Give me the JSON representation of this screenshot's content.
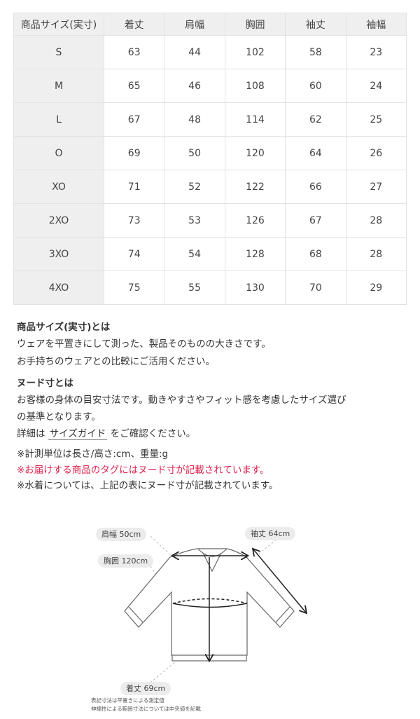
{
  "table": {
    "headers": [
      "商品サイズ(実寸)",
      "着丈",
      "肩幅",
      "胸囲",
      "袖丈",
      "袖幅"
    ],
    "rows": [
      [
        "S",
        "63",
        "44",
        "102",
        "58",
        "23"
      ],
      [
        "M",
        "65",
        "46",
        "108",
        "60",
        "24"
      ],
      [
        "L",
        "67",
        "48",
        "114",
        "62",
        "25"
      ],
      [
        "O",
        "69",
        "50",
        "120",
        "64",
        "26"
      ],
      [
        "XO",
        "71",
        "52",
        "122",
        "66",
        "27"
      ],
      [
        "2XO",
        "73",
        "53",
        "126",
        "67",
        "28"
      ],
      [
        "3XO",
        "74",
        "54",
        "128",
        "68",
        "28"
      ],
      [
        "4XO",
        "75",
        "55",
        "130",
        "70",
        "29"
      ]
    ]
  },
  "info": {
    "actual_title": "商品サイズ(実寸)とは",
    "actual_line1": "ウェアを平置きにして測った、製品そのものの大きさです。",
    "actual_line2": "お手持ちのウェアとの比較にご活用ください。",
    "nude_title": "ヌード寸とは",
    "nude_line1": "お客様の身体の目安寸法です。動きやすさやフィット感を考慮したサイズ選び",
    "nude_line2": "の基準となります。",
    "detail_prefix": "詳細は",
    "detail_link": "サイズガイド",
    "detail_suffix": "をご確認ください。",
    "note1": "※計測単位は長さ/高さ:cm、重量:g",
    "note2": "※お届けする商品のタグにはヌード寸が記載されています。",
    "note3": "※水着については、上記の表にヌード寸が記載されています。"
  },
  "diagram": {
    "shoulder": "肩幅 50cm",
    "sleeve": "袖丈 64cm",
    "chest": "胸囲 120cm",
    "length": "着丈 69cm",
    "footnote1": "表記寸法は平置きによる測定値",
    "footnote2": "伸縮性による範囲寸法については中央値を記載"
  },
  "colors": {
    "accent_red": "#e0234e",
    "header_bg": "#efefef"
  }
}
